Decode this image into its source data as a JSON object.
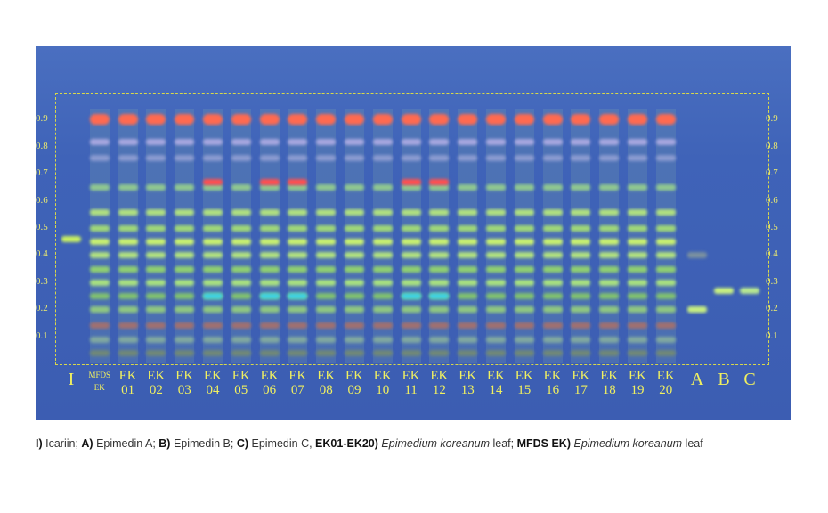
{
  "rf_ticks": [
    "0.9",
    "0.8",
    "0.7",
    "0.6",
    "0.5",
    "0.4",
    "0.3",
    "0.2",
    "0.1"
  ],
  "lanes": [
    {
      "label": [
        "I"
      ],
      "bands": [
        [
          0.46,
          "#c8f060"
        ]
      ]
    },
    {
      "label": [
        "MFDS",
        "EK"
      ],
      "type": "ek"
    },
    {
      "label": [
        "EK",
        "01"
      ],
      "type": "ek"
    },
    {
      "label": [
        "EK",
        "02"
      ],
      "type": "ek"
    },
    {
      "label": [
        "EK",
        "03"
      ],
      "type": "ek"
    },
    {
      "label": [
        "EK",
        "04"
      ],
      "type": "ek2"
    },
    {
      "label": [
        "EK",
        "05"
      ],
      "type": "ek"
    },
    {
      "label": [
        "EK",
        "06"
      ],
      "type": "ek2"
    },
    {
      "label": [
        "EK",
        "07"
      ],
      "type": "ek2"
    },
    {
      "label": [
        "EK",
        "08"
      ],
      "type": "ek"
    },
    {
      "label": [
        "EK",
        "09"
      ],
      "type": "ek"
    },
    {
      "label": [
        "EK",
        "10"
      ],
      "type": "ek"
    },
    {
      "label": [
        "EK",
        "11"
      ],
      "type": "ek2"
    },
    {
      "label": [
        "EK",
        "12"
      ],
      "type": "ek2"
    },
    {
      "label": [
        "EK",
        "13"
      ],
      "type": "ek"
    },
    {
      "label": [
        "EK",
        "14"
      ],
      "type": "ek"
    },
    {
      "label": [
        "EK",
        "15"
      ],
      "type": "ek"
    },
    {
      "label": [
        "EK",
        "16"
      ],
      "type": "ek"
    },
    {
      "label": [
        "EK",
        "17"
      ],
      "type": "ek"
    },
    {
      "label": [
        "EK",
        "18"
      ],
      "type": "ek"
    },
    {
      "label": [
        "EK",
        "19"
      ],
      "type": "ek"
    },
    {
      "label": [
        "EK",
        "20"
      ],
      "type": "ek"
    },
    {
      "label": [
        "A"
      ],
      "bands": [
        [
          0.2,
          "#c8f080"
        ],
        [
          0.4,
          "#7a90a0"
        ]
      ]
    },
    {
      "label": [
        "B"
      ],
      "bands": [
        [
          0.27,
          "#c8f080"
        ]
      ]
    },
    {
      "label": [
        "C"
      ],
      "bands": [
        [
          0.27,
          "#b8e890"
        ]
      ]
    }
  ],
  "ek_bands": [
    [
      0.9,
      "#ff6a50"
    ],
    [
      0.82,
      "#a8a8e0"
    ],
    [
      0.76,
      "#8a9ad0"
    ],
    [
      0.65,
      "#90c890"
    ],
    [
      0.56,
      "#b0e080"
    ],
    [
      0.5,
      "#a0d878"
    ],
    [
      0.45,
      "#c8f070"
    ],
    [
      0.4,
      "#b0e080"
    ],
    [
      0.35,
      "#90d070"
    ],
    [
      0.3,
      "#a8e080"
    ],
    [
      0.25,
      "#80c070"
    ],
    [
      0.2,
      "#90c880"
    ],
    [
      0.14,
      "#a07070"
    ],
    [
      0.09,
      "#80a8a0"
    ],
    [
      0.04,
      "#708878"
    ]
  ],
  "ek2_extra": [
    [
      0.67,
      "#ff5050"
    ],
    [
      0.25,
      "#40d0e0"
    ]
  ],
  "caption": [
    {
      "t": "I)",
      "b": true
    },
    {
      "t": " Icariin; "
    },
    {
      "t": "A)",
      "b": true
    },
    {
      "t": " Epimedin A; "
    },
    {
      "t": "B)",
      "b": true
    },
    {
      "t": " Epimedin B; "
    },
    {
      "t": "C)",
      "b": true
    },
    {
      "t": " Epimedin C, "
    },
    {
      "t": "EK01-EK20)",
      "b": true
    },
    {
      "t": " "
    },
    {
      "t": "Epimedium koreanum",
      "i": true
    },
    {
      "t": " leaf; "
    },
    {
      "t": "MFDS EK)",
      "b": true
    },
    {
      "t": " "
    },
    {
      "t": "Epimedium koreanum",
      "i": true
    },
    {
      "t": " leaf"
    }
  ]
}
